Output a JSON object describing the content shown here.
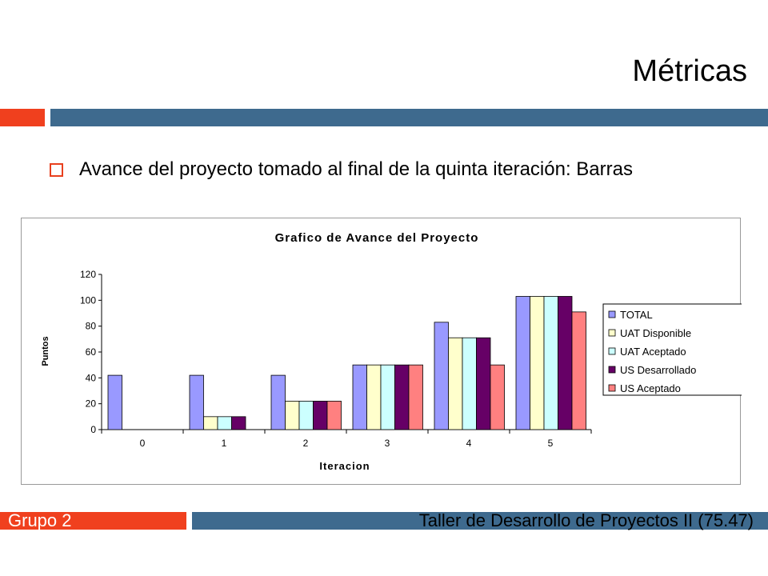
{
  "slide": {
    "title": "Métricas",
    "bullet": "Avance del proyecto tomado al final de la quinta iteración: Barras",
    "footer_left": "Grupo 2",
    "footer_right": "Taller de Desarrollo de Proyectos II (75.47)"
  },
  "colors": {
    "accent_red": "#f0401e",
    "accent_blue": "#3e6a8e"
  },
  "chart_data": {
    "type": "bar",
    "title": "Grafico de Avance del Proyecto",
    "xlabel": "Iteracion",
    "ylabel": "Puntos",
    "categories": [
      "0",
      "1",
      "2",
      "3",
      "4",
      "5"
    ],
    "ylim": [
      0,
      120
    ],
    "yticks": [
      "0",
      "20",
      "40",
      "60",
      "80",
      "100",
      "120"
    ],
    "grid": false,
    "legend_position": "right",
    "series": [
      {
        "name": "TOTAL",
        "color": "#9999ff",
        "values": [
          42,
          42,
          42,
          50,
          83,
          103
        ]
      },
      {
        "name": "UAT Disponible",
        "color": "#ffffcc",
        "values": [
          0,
          10,
          22,
          50,
          71,
          103
        ]
      },
      {
        "name": "UAT Aceptado",
        "color": "#ccffff",
        "values": [
          0,
          10,
          22,
          50,
          71,
          103
        ]
      },
      {
        "name": "US Desarrollado",
        "color": "#660066",
        "values": [
          0,
          10,
          22,
          50,
          71,
          103
        ]
      },
      {
        "name": "US Aceptado",
        "color": "#ff8080",
        "values": [
          0,
          0,
          22,
          50,
          50,
          91
        ]
      }
    ]
  }
}
